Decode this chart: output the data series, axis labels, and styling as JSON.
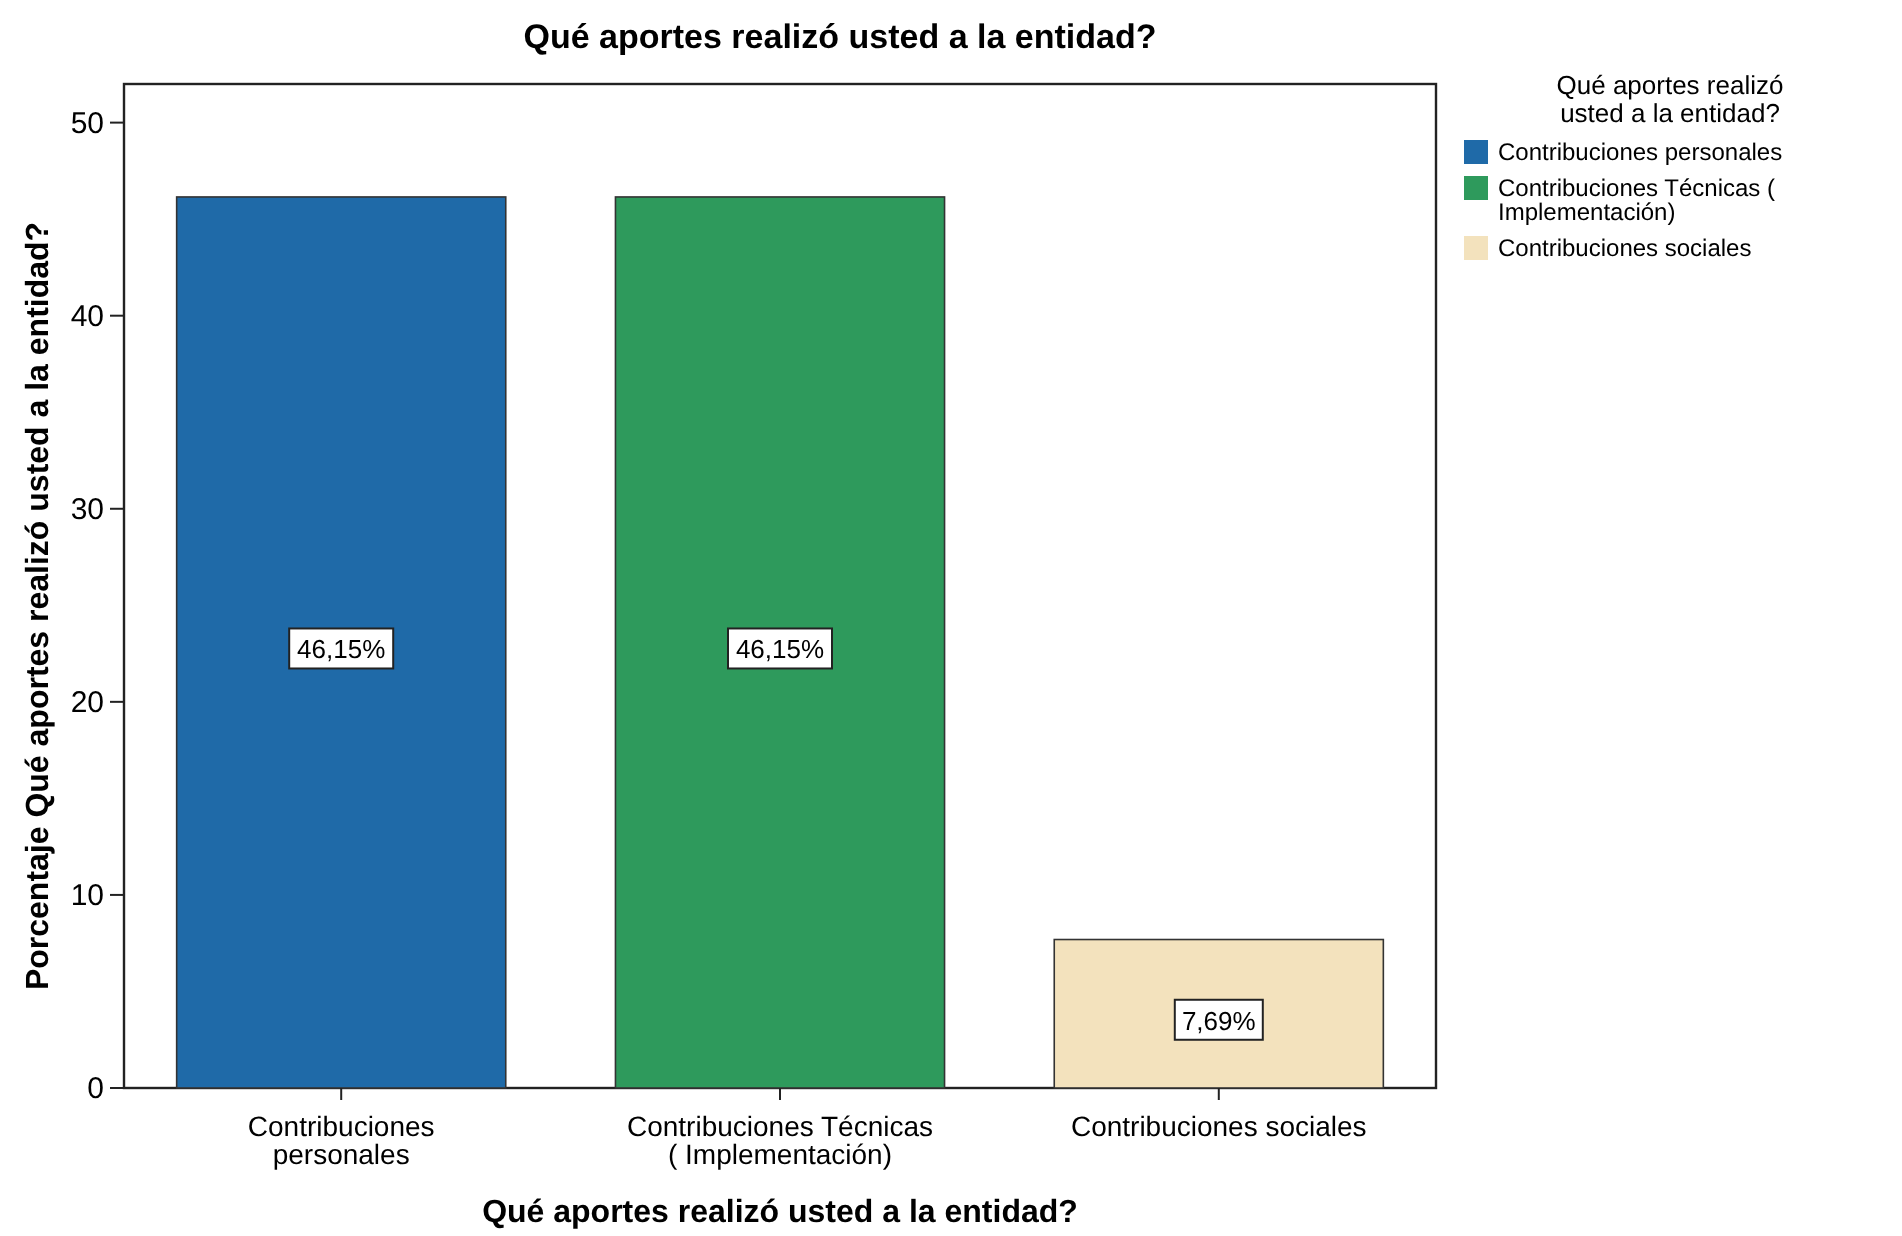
{
  "chart_data": {
    "type": "bar",
    "title": "Qué aportes realizó usted a la entidad?",
    "xlabel": "Qué aportes realizó usted a la entidad?",
    "ylabel": "Porcentaje Qué aportes realizó usted a la entidad?",
    "legend_title": "Qué aportes realizó usted a la entidad?",
    "categories": [
      "Contribuciones personales",
      "Contribuciones Técnicas ( Implementación)",
      "Contribuciones sociales"
    ],
    "series": [
      {
        "name": "Contribuciones personales",
        "color": "#1f6aa8",
        "values": [
          46.15,
          null,
          null
        ],
        "value_labels": [
          "46,15%",
          null,
          null
        ]
      },
      {
        "name": "Contribuciones Técnicas ( Implementación)",
        "color": "#2e9a5c",
        "values": [
          null,
          46.15,
          null
        ],
        "value_labels": [
          null,
          "46,15%",
          null
        ]
      },
      {
        "name": "Contribuciones sociales",
        "color": "#f3e2bd",
        "values": [
          null,
          null,
          7.69
        ],
        "value_labels": [
          null,
          null,
          "7,69%"
        ]
      }
    ],
    "ylim": [
      0,
      52
    ],
    "yticks": [
      0,
      10,
      20,
      30,
      40,
      50
    ],
    "legend": "right"
  }
}
